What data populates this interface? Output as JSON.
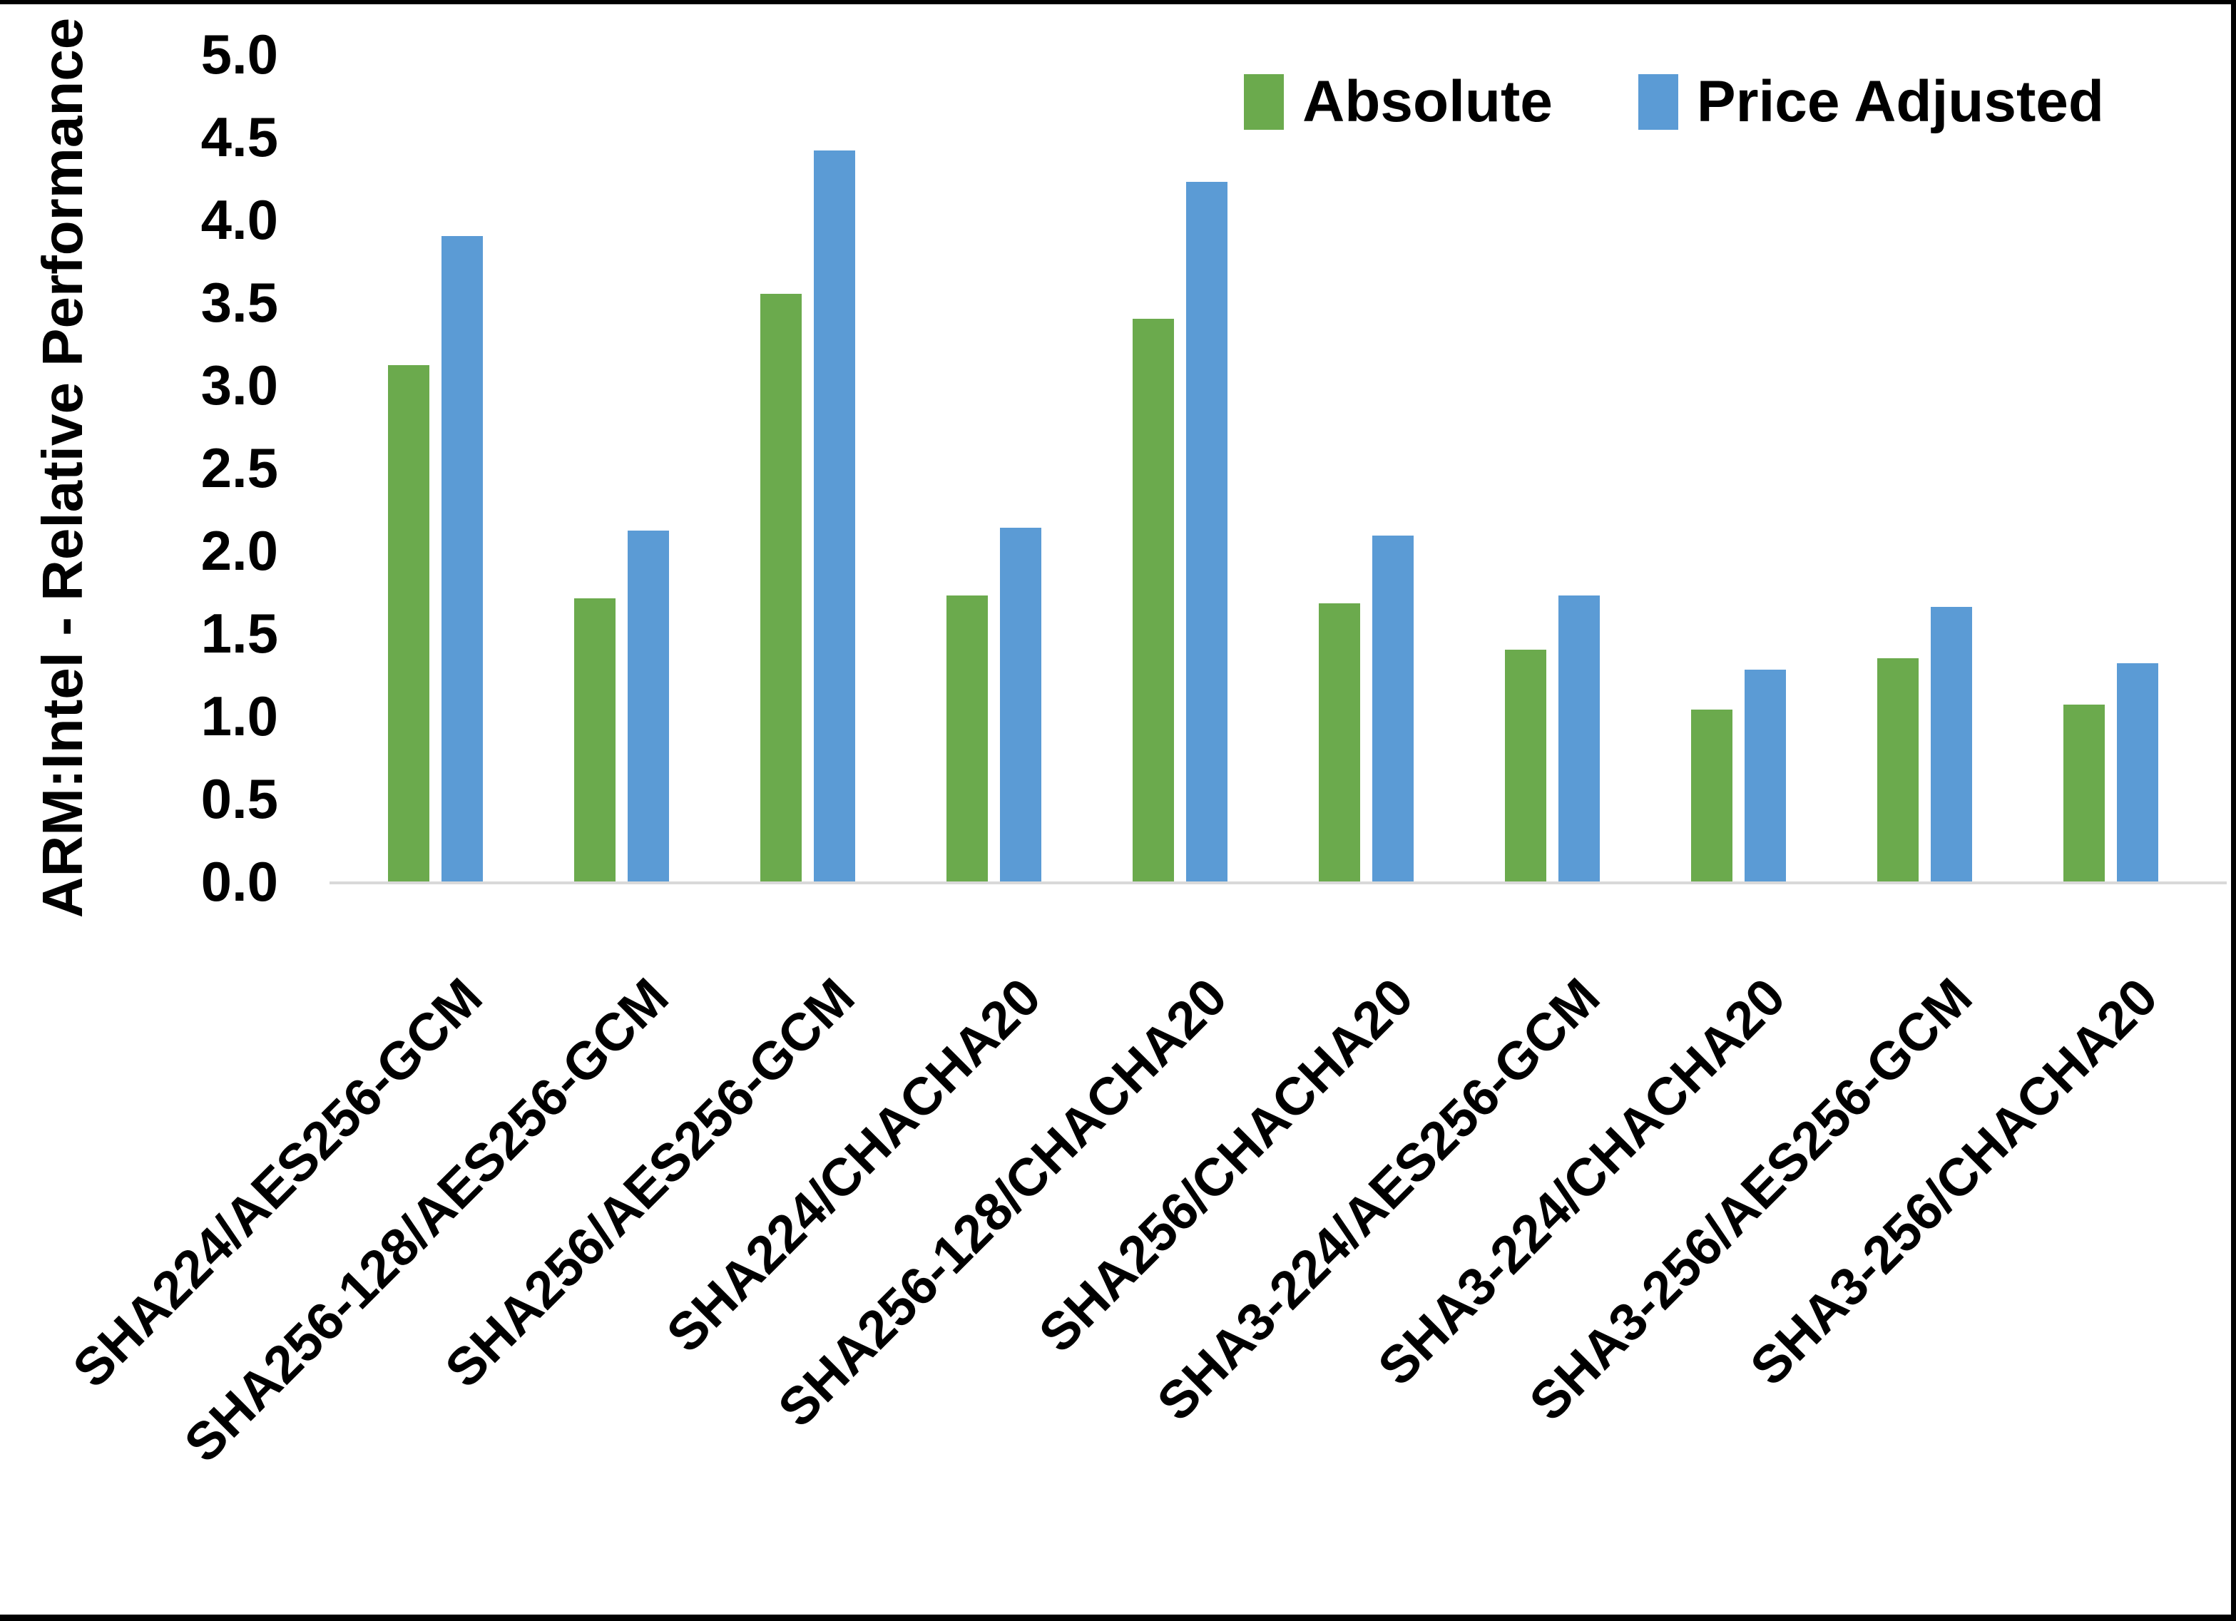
{
  "chart_data": {
    "type": "bar",
    "title": "",
    "ylabel": "ARM:Intel - Relative Performance",
    "xlabel": "",
    "ylim": [
      0,
      5
    ],
    "ytick_step": 0.5,
    "ytick_decimals": 1,
    "grid": false,
    "legend_position": "top-right",
    "baseline_color": "#d9d9d9",
    "categories": [
      "SHA224/AES256-GCM",
      "SHA256-128/AES256-GCM",
      "SHA256/AES256-GCM",
      "SHA224/CHACHA20",
      "SHA256-128/CHACHA20",
      "SHA256/CHACHA20",
      "SHA3-224/AES256-GCM",
      "SHA3-224/CHACHA20",
      "SHA3-256/AES256-GCM",
      "SHA3-256/CHACHA20"
    ],
    "series": [
      {
        "name": "Absolute",
        "color": "#6BAA4D",
        "values": [
          3.12,
          1.71,
          3.55,
          1.73,
          3.4,
          1.68,
          1.4,
          1.04,
          1.35,
          1.07
        ]
      },
      {
        "name": "Price Adjusted",
        "color": "#5B9BD5",
        "values": [
          3.9,
          2.12,
          4.42,
          2.14,
          4.23,
          2.09,
          1.73,
          1.28,
          1.66,
          1.32
        ]
      }
    ]
  }
}
